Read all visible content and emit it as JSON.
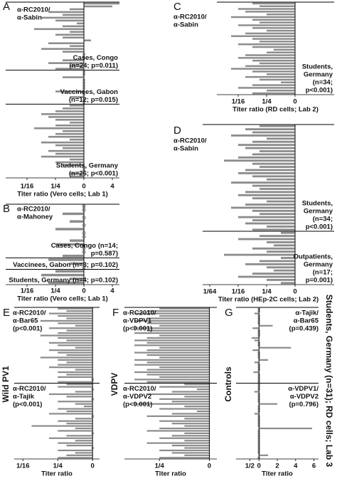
{
  "annotation": "Students, Germany (n=31); RD cells; Lab 3",
  "chart_data": [
    {
      "type": "bar",
      "orientation": "horizontal",
      "panel": "A",
      "label": [
        "α-RC2010/",
        "α-Sabin"
      ],
      "groups": [
        {
          "name": [
            "Cases, Congo",
            "(n=24; p=0.011)"
          ],
          "values": [
            2.5,
            2,
            -1,
            -2.5,
            -1.5,
            -3,
            -2,
            -0.5,
            -1.5,
            -3.5,
            -1,
            -2,
            -1.5,
            0.5,
            -2.5,
            -1,
            -3,
            -1.5,
            0,
            0,
            -1.5,
            -2.5,
            -1,
            -2
          ]
        },
        {
          "name": [
            "Vaccinees, Gabon",
            "(n=12; p=0.015)"
          ],
          "values": [
            0,
            0,
            -1.5,
            0,
            0,
            0,
            0,
            -2,
            0,
            -1,
            0,
            0
          ]
        },
        {
          "name": [
            "Students, Germany",
            "(n=26; p<0.001)"
          ],
          "values": [
            -1,
            -1.5,
            -2,
            -3,
            -2.5,
            -2,
            -1,
            -2,
            -3.5,
            -1.5,
            -2,
            -2.5,
            -1,
            -3,
            -2,
            -1.5,
            -2.5,
            -2,
            -3,
            -1,
            -2,
            -1.5,
            0,
            0,
            -1,
            -1
          ]
        }
      ],
      "xlim": [
        -5.5,
        2.5
      ],
      "xticks": [
        {
          "value": -4,
          "label": "1/16"
        },
        {
          "value": -2,
          "label": "1/4"
        },
        0,
        {
          "value": 2,
          "label": "4"
        }
      ],
      "xlabel": "Titer ratio (Vero cells; Lab 1)"
    },
    {
      "type": "bar",
      "orientation": "horizontal",
      "panel": "B",
      "label": [
        "α-RC2010/",
        "α-Mahoney"
      ],
      "groups": [
        {
          "name": [
            "Cases, Congo (n=14;",
            "p=0.587)"
          ],
          "values": [
            0,
            0,
            -1.5,
            0,
            -1,
            0,
            -2,
            0,
            0,
            -1,
            -2,
            0,
            0,
            -1.5
          ]
        },
        {
          "name": [
            "Vaccinees, Gabon (n=3; p=0.102)"
          ],
          "values": [
            -2.5,
            -1,
            0
          ]
        },
        {
          "name": [
            "Students, Germany (n=4; p=0.102)"
          ],
          "values": [
            -2,
            -3,
            -1,
            -2.5
          ]
        }
      ],
      "xlim": [
        -5.5,
        2.5
      ],
      "xticks": [
        {
          "value": -4,
          "label": "1/16"
        },
        {
          "value": -2,
          "label": "1/4"
        },
        0,
        {
          "value": 2,
          "label": "4"
        }
      ],
      "xlabel": "Titer ratio (Vero cells; Lab 1)"
    },
    {
      "type": "bar",
      "orientation": "horizontal",
      "panel": "C",
      "label": [
        "α-RC2010/",
        "α-Sabin"
      ],
      "groups": [
        {
          "name": [
            "Students,",
            "Germany",
            "(n=34;",
            "p<0.001)"
          ],
          "values": [
            -3,
            -2.5,
            -4,
            -3.5,
            -2,
            -4.5,
            -3,
            -2.5,
            -4,
            -3,
            -2,
            -3.5,
            -4.5,
            -3,
            -2.5,
            -4,
            -3,
            -1.5,
            -2,
            -3.5,
            -4,
            -3,
            -2.5,
            -3.5,
            -4.5,
            -3,
            -2,
            -3.5,
            -2.5,
            -1,
            -3,
            -4,
            -2,
            -3
          ]
        }
      ],
      "xlim": [
        -5.5,
        2.75
      ],
      "xticks": [
        {
          "value": -4,
          "label": "1/16"
        },
        {
          "value": -2,
          "label": "1/4"
        },
        0
      ],
      "xlabel": "Titer ratio (RD cells; Lab 2)"
    },
    {
      "type": "bar",
      "orientation": "horizontal",
      "panel": "D",
      "label": [
        "α-RC2010/",
        "α-Sabin"
      ],
      "groups": [
        {
          "name": [
            "Students,",
            "Germany",
            "(n=34;",
            "p<0.001)"
          ],
          "values": [
            -2.5,
            -3.5,
            -3,
            -4.5,
            -2,
            -3,
            -4,
            -3.5,
            -2.5,
            -3,
            -4,
            -5,
            -3,
            -2.5,
            -3.5,
            -4,
            -3,
            -2,
            -4.5,
            -3,
            -2.5,
            -3.5,
            -4,
            -3,
            -2,
            -3.5,
            -4.5,
            -3,
            -2.5,
            -4,
            -3,
            -3.5,
            -2,
            -3
          ]
        },
        {
          "name": [
            "Outpatients,",
            "Germany",
            "(n=17;",
            "p=0.001)"
          ],
          "values": [
            -1,
            -2.5,
            -4,
            -2,
            -1.5,
            -3,
            -2,
            -5,
            -1,
            -2.5,
            -3.5,
            -2,
            -1.5,
            -3,
            -4,
            -2,
            -1
          ]
        }
      ],
      "xlim": [
        -6.5,
        2.75
      ],
      "xticks": [
        {
          "value": -6,
          "label": "1/64"
        },
        {
          "value": -4,
          "label": "1/16"
        },
        {
          "value": -2,
          "label": "1/4"
        },
        0
      ],
      "xlabel": "Titer ratio (HEp-2C cells; Lab 2)"
    },
    {
      "type": "bar",
      "orientation": "horizontal",
      "panel": "E",
      "side_label": "Wild PV1",
      "groups": [
        {
          "name": [
            "α-RC2010/",
            "α-Bar65",
            "(p<0.001)"
          ],
          "values": [
            -2,
            -1.5,
            -2.5,
            -2,
            -1.5,
            -3,
            -2,
            -1,
            -2.5,
            -1.5,
            -2,
            -3,
            -2,
            -1.5,
            -2.5,
            -2,
            -1,
            -2.5,
            -2,
            -1.5,
            -3,
            -2,
            -1.5,
            -2,
            -2.5,
            -1,
            -2,
            -1.5,
            -2,
            0,
            -2
          ]
        },
        {
          "name": [
            "α-RC2010/",
            "α-Tajik",
            "(p<0.001)"
          ],
          "values": [
            -1.5,
            -2,
            0,
            -1,
            -2.5,
            -1.5,
            0,
            -2,
            -1,
            -0.5,
            -2,
            -1.5,
            -2.5,
            0,
            -1,
            -2,
            -1.5,
            -3.5,
            -1,
            -2,
            0,
            -1.5,
            -2.5,
            -1,
            -2,
            -1.5,
            0,
            -2,
            -1,
            -1.5,
            -2
          ]
        }
      ],
      "xlim": [
        -4.5,
        0.4
      ],
      "xticks": [
        {
          "value": -4,
          "label": "1/16"
        },
        {
          "value": -2,
          "label": "1/4"
        },
        0
      ],
      "xlabel": "Titer ratio"
    },
    {
      "type": "bar",
      "orientation": "horizontal",
      "panel": "F",
      "side_label": "VDPV",
      "groups": [
        {
          "name": [
            "α-RC2010/",
            "α-VDPV1",
            "(p<0.001)"
          ],
          "values": [
            -2,
            -2.5,
            -3,
            -2,
            -2.5,
            -3,
            -2.5,
            -2,
            -3,
            -2.5,
            -3,
            -2,
            -2.5,
            -3,
            -2.5,
            -3,
            -2,
            -2.5,
            -3,
            -2.5,
            -2,
            -3,
            -2.5,
            -3,
            -2,
            -2.5,
            -3,
            -2.5,
            -2,
            -3,
            -2.5
          ]
        },
        {
          "name": [
            "α-RC2010/",
            "α-VDPV2",
            "(p<0.001)"
          ],
          "values": [
            -1,
            -2,
            -0.5,
            -1.5,
            -2.5,
            -1,
            -2,
            -1.5,
            -3,
            -1,
            -2,
            -0.5,
            -1.5,
            -2.5,
            -1,
            -2,
            -1.5,
            -1,
            -2,
            -2.5,
            -1,
            -1.5,
            -2,
            -1,
            -2.5,
            -1.5,
            -1,
            -2,
            -1.5,
            -1,
            -2
          ]
        }
      ],
      "xlim": [
        -3.4,
        0.3
      ],
      "xticks": [
        {
          "value": -2,
          "label": "1/4"
        },
        0
      ],
      "xlabel": "Titer ratio"
    },
    {
      "type": "bar",
      "orientation": "horizontal",
      "panel": "G",
      "side_label": "Controls",
      "groups": [
        {
          "name": [
            "α-Tajik/",
            "α-Bar65",
            "(p=0.439)"
          ],
          "values": [
            0,
            0,
            -0.5,
            0,
            0,
            0,
            0,
            1.5,
            -0.7,
            0,
            0,
            0,
            -0.8,
            -0.5,
            0,
            0,
            3.5,
            -0.7,
            0,
            0,
            0,
            1,
            -0.5,
            0,
            0,
            0,
            -0.6,
            0,
            0,
            0,
            0
          ]
        },
        {
          "name": [
            "α-VDPV1/",
            "α-VDPV2",
            "(p=0.796)"
          ],
          "values": [
            0,
            0,
            0,
            -0.5,
            0,
            0,
            0,
            0,
            2,
            0,
            0,
            0,
            -0.5,
            0,
            0,
            0,
            0,
            0,
            5.8,
            0,
            0,
            0,
            0,
            0,
            0,
            0,
            0,
            0,
            0,
            1,
            0
          ]
        }
      ],
      "xlim": [
        -2.5,
        6.5
      ],
      "xticks": [
        {
          "value": -1,
          "label": "1/2"
        },
        0,
        2,
        4,
        6
      ],
      "xlabel": "Titer ratio"
    }
  ]
}
